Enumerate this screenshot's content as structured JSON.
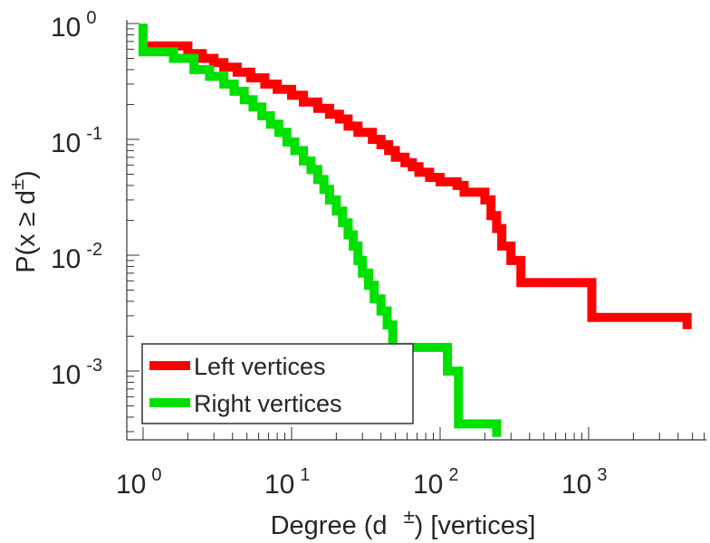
{
  "chart_data": {
    "type": "line",
    "subtype": "step-ccdf",
    "xscale": "log",
    "yscale": "log",
    "xlim": [
      0.75,
      6000
    ],
    "ylim": [
      0.00027,
      1.1
    ],
    "xlabel": "Degree (d  ±) [vertices]",
    "xlabel_parts": [
      "Degree (d",
      "±",
      ") [vertices]"
    ],
    "ylabel": "P(x ≥ d±)",
    "ylabel_parts": [
      "P(x ",
      "≥",
      " d",
      "±",
      ")"
    ],
    "x_ticks": [
      {
        "value": 1,
        "base": "10",
        "exp": "0"
      },
      {
        "value": 10,
        "base": "10",
        "exp": "1"
      },
      {
        "value": 100,
        "base": "10",
        "exp": "2"
      },
      {
        "value": 1000,
        "base": "10",
        "exp": "3"
      }
    ],
    "y_ticks": [
      {
        "value": 1,
        "base": "10",
        "exp": "0"
      },
      {
        "value": 0.1,
        "base": "10",
        "exp": "-1"
      },
      {
        "value": 0.01,
        "base": "10",
        "exp": "-2"
      },
      {
        "value": 0.001,
        "base": "10",
        "exp": "-3"
      }
    ],
    "legend_position": "bottom-left",
    "series": [
      {
        "name": "Left vertices",
        "color": "#ff0000",
        "points": [
          [
            1,
            1
          ],
          [
            1,
            0.64
          ],
          [
            2,
            0.64
          ],
          [
            2,
            0.55
          ],
          [
            2.5,
            0.55
          ],
          [
            2.5,
            0.5
          ],
          [
            3,
            0.5
          ],
          [
            3,
            0.46
          ],
          [
            3.5,
            0.46
          ],
          [
            3.5,
            0.42
          ],
          [
            4.3,
            0.42
          ],
          [
            4.3,
            0.38
          ],
          [
            5.3,
            0.38
          ],
          [
            5.3,
            0.34
          ],
          [
            6.6,
            0.34
          ],
          [
            6.6,
            0.3
          ],
          [
            8,
            0.3
          ],
          [
            8,
            0.27
          ],
          [
            10,
            0.27
          ],
          [
            10,
            0.24
          ],
          [
            12,
            0.24
          ],
          [
            12,
            0.21
          ],
          [
            15,
            0.21
          ],
          [
            15,
            0.185
          ],
          [
            18,
            0.185
          ],
          [
            18,
            0.165
          ],
          [
            21,
            0.165
          ],
          [
            21,
            0.15
          ],
          [
            24,
            0.15
          ],
          [
            24,
            0.13
          ],
          [
            28,
            0.13
          ],
          [
            28,
            0.115
          ],
          [
            35,
            0.115
          ],
          [
            35,
            0.1
          ],
          [
            40,
            0.1
          ],
          [
            40,
            0.09
          ],
          [
            45,
            0.09
          ],
          [
            45,
            0.08
          ],
          [
            50,
            0.08
          ],
          [
            50,
            0.07
          ],
          [
            58,
            0.07
          ],
          [
            58,
            0.063
          ],
          [
            65,
            0.063
          ],
          [
            65,
            0.058
          ],
          [
            72,
            0.058
          ],
          [
            72,
            0.052
          ],
          [
            85,
            0.052
          ],
          [
            85,
            0.047
          ],
          [
            100,
            0.047
          ],
          [
            100,
            0.043
          ],
          [
            130,
            0.043
          ],
          [
            130,
            0.04
          ],
          [
            145,
            0.04
          ],
          [
            145,
            0.035
          ],
          [
            200,
            0.035
          ],
          [
            200,
            0.03
          ],
          [
            220,
            0.03
          ],
          [
            220,
            0.022
          ],
          [
            240,
            0.022
          ],
          [
            240,
            0.017
          ],
          [
            260,
            0.017
          ],
          [
            260,
            0.012
          ],
          [
            300,
            0.012
          ],
          [
            300,
            0.009
          ],
          [
            350,
            0.009
          ],
          [
            350,
            0.0058
          ],
          [
            1050,
            0.0058
          ],
          [
            1050,
            0.0029
          ],
          [
            4600,
            0.0029
          ],
          [
            4600,
            0.0023
          ]
        ]
      },
      {
        "name": "Right vertices",
        "color": "#00e000",
        "points": [
          [
            1,
            1
          ],
          [
            1,
            0.57
          ],
          [
            1.6,
            0.57
          ],
          [
            1.6,
            0.5
          ],
          [
            2.2,
            0.5
          ],
          [
            2.2,
            0.4
          ],
          [
            2.8,
            0.4
          ],
          [
            2.8,
            0.35
          ],
          [
            3.5,
            0.35
          ],
          [
            3.5,
            0.3
          ],
          [
            4.1,
            0.3
          ],
          [
            4.1,
            0.26
          ],
          [
            4.8,
            0.26
          ],
          [
            4.8,
            0.22
          ],
          [
            5.5,
            0.22
          ],
          [
            5.5,
            0.19
          ],
          [
            6.3,
            0.19
          ],
          [
            6.3,
            0.16
          ],
          [
            7.2,
            0.16
          ],
          [
            7.2,
            0.135
          ],
          [
            8.2,
            0.135
          ],
          [
            8.2,
            0.115
          ],
          [
            9.3,
            0.115
          ],
          [
            9.3,
            0.095
          ],
          [
            10.5,
            0.095
          ],
          [
            10.5,
            0.08
          ],
          [
            12,
            0.08
          ],
          [
            12,
            0.065
          ],
          [
            13.5,
            0.065
          ],
          [
            13.5,
            0.055
          ],
          [
            15,
            0.055
          ],
          [
            15,
            0.045
          ],
          [
            16.5,
            0.045
          ],
          [
            16.5,
            0.037
          ],
          [
            18,
            0.037
          ],
          [
            18,
            0.03
          ],
          [
            20,
            0.03
          ],
          [
            20,
            0.024
          ],
          [
            22,
            0.024
          ],
          [
            22,
            0.019
          ],
          [
            24,
            0.019
          ],
          [
            24,
            0.015
          ],
          [
            26,
            0.015
          ],
          [
            26,
            0.012
          ],
          [
            28,
            0.012
          ],
          [
            28,
            0.009
          ],
          [
            30,
            0.009
          ],
          [
            30,
            0.007
          ],
          [
            33,
            0.007
          ],
          [
            33,
            0.0055
          ],
          [
            36,
            0.0055
          ],
          [
            36,
            0.0042
          ],
          [
            40,
            0.0042
          ],
          [
            40,
            0.0033
          ],
          [
            44,
            0.0033
          ],
          [
            44,
            0.0025
          ],
          [
            48,
            0.0025
          ],
          [
            48,
            0.0016
          ],
          [
            112,
            0.0016
          ],
          [
            112,
            0.001
          ],
          [
            133,
            0.001
          ],
          [
            133,
            0.00035
          ],
          [
            240,
            0.00035
          ],
          [
            240,
            0.00027
          ]
        ]
      }
    ]
  }
}
